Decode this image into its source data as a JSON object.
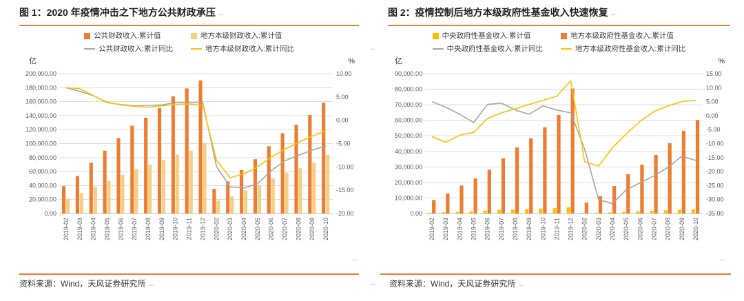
{
  "page": {
    "return_mark": "←",
    "accent_color": "#EE7E2D"
  },
  "chart_data": [
    {
      "type": "bar+line",
      "figure_label": "图 1：2020 年疫情冲击之下地方公共财政承压",
      "source": "资料来源：Wind，天风证券研究所",
      "unit_left": "亿",
      "unit_right": "%",
      "legend_position": "top",
      "grid": true,
      "categories": [
        "2019-02",
        "2019-03",
        "2019-04",
        "2019-05",
        "2019-06",
        "2019-07",
        "2019-08",
        "2019-09",
        "2019-10",
        "2019-11",
        "2019-12",
        "2020-02",
        "2020-03",
        "2020-04",
        "2020-05",
        "2020-06",
        "2020-07",
        "2020-08",
        "2020-09",
        "2020-10"
      ],
      "bar_series": [
        {
          "name": "公共财政收入:累计值",
          "color": "#ED7D31",
          "values": [
            39104,
            53656,
            72651,
            89919,
            107846,
            125623,
            137061,
            150678,
            167704,
            178967,
            190382,
            35232,
            45984,
            62133,
            77672,
            96176,
            114725,
            126768,
            141002,
            158533
          ]
        },
        {
          "name": "地方本级财政收入:累计值",
          "color": "#F7CE83",
          "values": [
            21000,
            29100,
            38300,
            46700,
            55300,
            63400,
            69600,
            76700,
            84300,
            89800,
            101100,
            18500,
            24500,
            33100,
            40800,
            50300,
            58500,
            64900,
            72500,
            84000
          ]
        }
      ],
      "line_series": [
        {
          "name": "公共财政收入:累计同比",
          "color": "#A6A6A6",
          "values": [
            7.0,
            6.2,
            5.3,
            3.8,
            3.4,
            3.1,
            3.2,
            3.3,
            3.8,
            3.8,
            3.8,
            -9.9,
            -14.3,
            -14.5,
            -13.6,
            -10.8,
            -8.7,
            -7.5,
            -6.4,
            -5.5
          ]
        },
        {
          "name": "地方本级财政收入:累计同比",
          "color": "#FFC000",
          "values": [
            7.0,
            6.8,
            5.3,
            3.9,
            3.3,
            3.0,
            2.8,
            3.1,
            3.4,
            3.5,
            3.2,
            -8.6,
            -12.3,
            -11.5,
            -10.0,
            -7.9,
            -6.2,
            -4.7,
            -3.4,
            -2.2
          ]
        }
      ],
      "left_axis": {
        "min": 0,
        "max": 200000,
        "ticks": [
          "200,000.00",
          "180,000.00",
          "160,000.00",
          "140,000.00",
          "120,000.00",
          "100,000.00",
          "80,000.00",
          "60,000.00",
          "40,000.00",
          "20,000.00",
          "0.00"
        ]
      },
      "right_axis": {
        "min": -20,
        "max": 10,
        "ticks": [
          "10.00",
          "5.00",
          "0.00",
          "-5.00",
          "-10.00",
          "-15.00",
          "-20.00"
        ]
      }
    },
    {
      "type": "bar+line",
      "figure_label": "图 2：疫情控制后地方本级政府性基金收入快速恢复",
      "source": "资料来源：Wind，天风证券研究所",
      "unit_left": "亿",
      "unit_right": "%",
      "legend_position": "top",
      "grid": true,
      "categories": [
        "2019-02",
        "2019-03",
        "2019-04",
        "2019-05",
        "2019-06",
        "2019-07",
        "2019-08",
        "2019-09",
        "2019-10",
        "2019-11",
        "2019-12",
        "2020-02",
        "2020-03",
        "2020-04",
        "2020-05",
        "2020-06",
        "2020-07",
        "2020-08",
        "2020-09",
        "2020-10"
      ],
      "bar_series": [
        {
          "name": "中央政府性基金收入:累计值",
          "color": "#FFC000",
          "values": [
            534,
            811,
            1105,
            1400,
            1862,
            2230,
            2522,
            2810,
            3172,
            3502,
            4040,
            471,
            568,
            757,
            1029,
            1415,
            1750,
            2055,
            2403,
            2664
          ]
        },
        {
          "name": "地方本级政府性基金收入:累计值",
          "color": "#ED7D31",
          "values": [
            8728,
            12903,
            17954,
            22529,
            28180,
            35517,
            42477,
            48434,
            55472,
            63455,
            80476,
            7057,
            11110,
            17707,
            25319,
            31479,
            37739,
            45307,
            53275,
            60141
          ]
        }
      ],
      "line_series": [
        {
          "name": "中央政府性基金收入:累计同比",
          "color": "#A6A6A6",
          "values": [
            5.0,
            3.0,
            0.5,
            -2.5,
            4.0,
            4.5,
            2.0,
            0.5,
            3.5,
            2.0,
            1.0,
            -12.0,
            -30.0,
            -31.5,
            -26.5,
            -24.0,
            -21.5,
            -18.5,
            -14.5,
            -16.0
          ]
        },
        {
          "name": "地方本级政府性基金收入:累计同比",
          "color": "#FFC000",
          "values": [
            -7.5,
            -9.5,
            -7.0,
            -6.0,
            -1.0,
            1.0,
            2.5,
            4.0,
            5.5,
            7.0,
            12.5,
            -16.5,
            -18.0,
            -11.5,
            -6.5,
            -2.0,
            1.5,
            3.5,
            5.0,
            5.5
          ]
        }
      ],
      "left_axis": {
        "min": 0,
        "max": 90000,
        "ticks": [
          "90,000.00",
          "80,000.00",
          "70,000.00",
          "60,000.00",
          "50,000.00",
          "40,000.00",
          "30,000.00",
          "20,000.00",
          "10,000.00",
          "0.00"
        ]
      },
      "right_axis": {
        "min": -35,
        "max": 15,
        "ticks": [
          "15.00",
          "10.00",
          "5.00",
          "0.00",
          "-5.00",
          "-10.00",
          "-15.00",
          "-20.00",
          "-25.00",
          "-30.00",
          "-35.00"
        ]
      }
    }
  ]
}
